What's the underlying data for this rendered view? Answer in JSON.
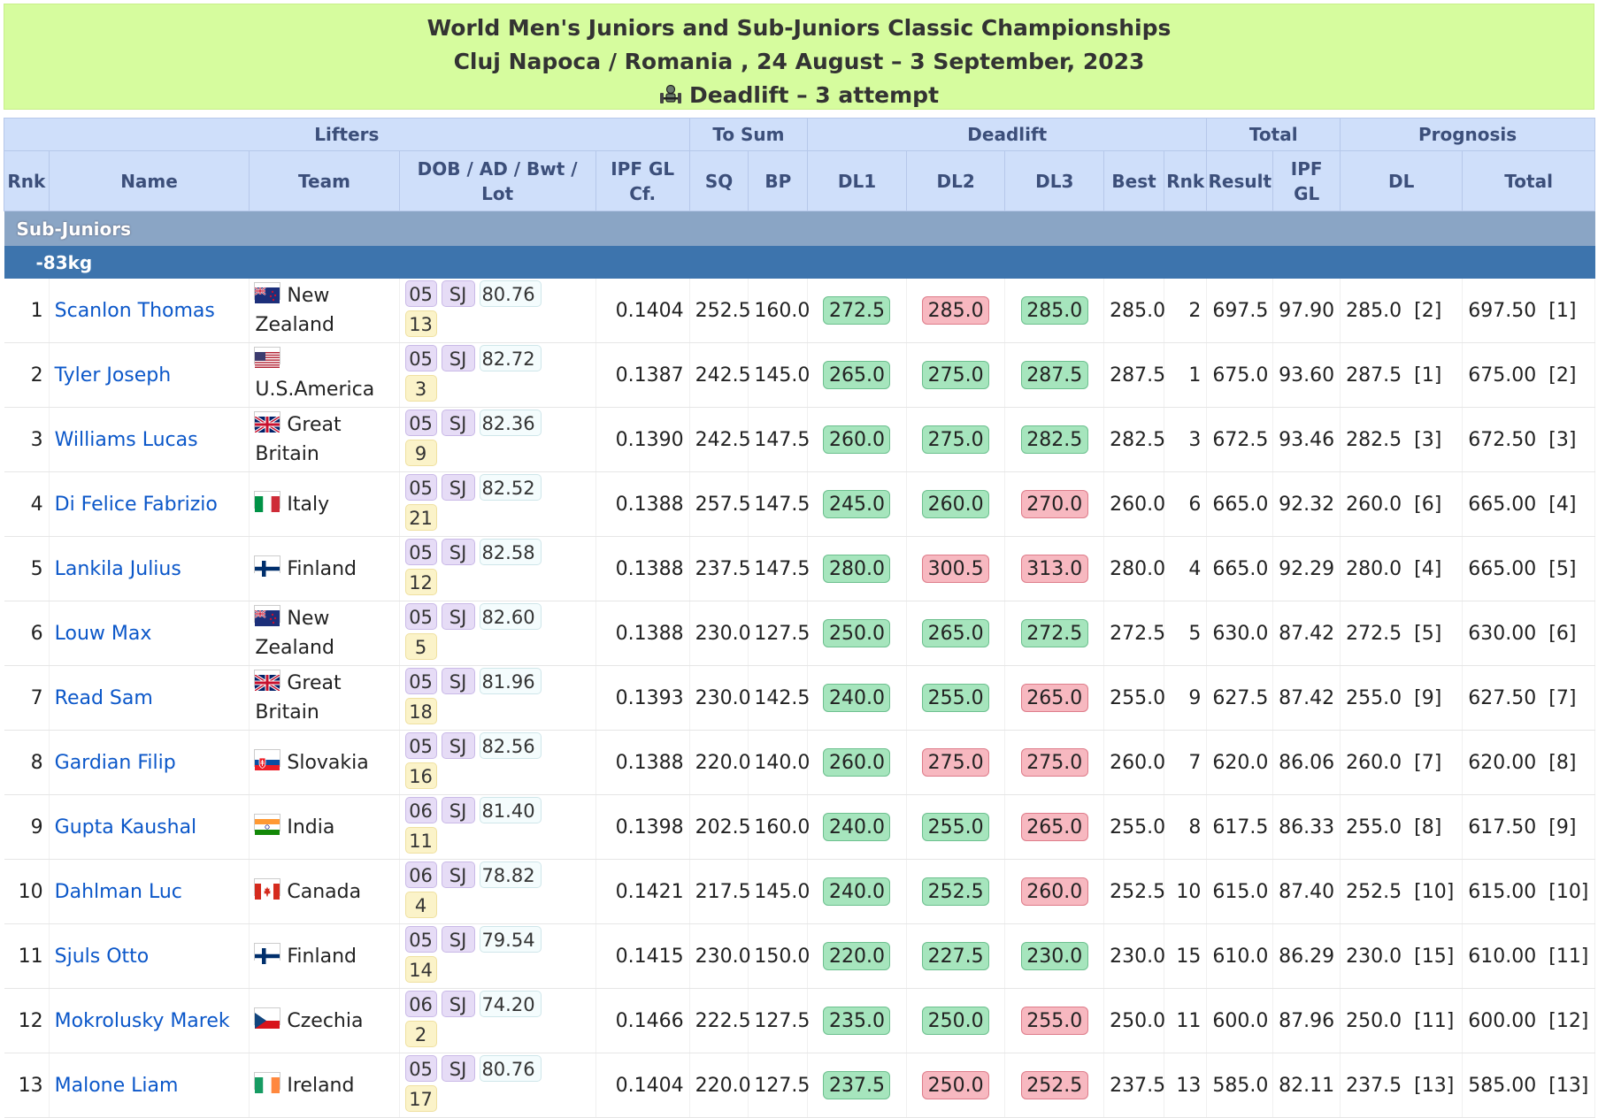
{
  "header": {
    "title": "World Men's Juniors and Sub-Juniors Classic Championships",
    "location": "Cluj Napoca / Romania , 24 August – 3 September, 2023",
    "event": "Deadlift – 3 attempt"
  },
  "columns": {
    "groups": {
      "lifters": "Lifters",
      "to_sum": "To Sum",
      "deadlift": "Deadlift",
      "total": "Total",
      "prognosis": "Prognosis"
    },
    "rnk": "Rnk",
    "name": "Name",
    "team": "Team",
    "dob_line1": "DOB / AD / Bwt /",
    "dob_line2": "Lot",
    "ipf_cf_line1": "IPF GL",
    "ipf_cf_line2": "Cf.",
    "sq": "SQ",
    "bp": "BP",
    "dl1": "DL1",
    "dl2": "DL2",
    "dl3": "DL3",
    "best": "Best",
    "dl_rnk": "Rnk",
    "result": "Result",
    "ipf_gl_line1": "IPF",
    "ipf_gl_line2": "GL",
    "prog_dl": "DL",
    "prog_total": "Total"
  },
  "category": "Sub-Juniors",
  "weight_class": "-83kg",
  "rows": [
    {
      "rnk": "1",
      "name": "Scanlon Thomas",
      "flag": "nz",
      "team": "New Zealand",
      "dob": "05",
      "ad": "SJ",
      "bwt": "80.76",
      "lot": "13",
      "cf": "0.1404",
      "sq": "252.5",
      "bp": "160.0",
      "dl1": "272.5",
      "dl1_ok": true,
      "dl2": "285.0",
      "dl2_ok": false,
      "dl3": "285.0",
      "dl3_ok": true,
      "best": "285.0",
      "dl_rnk": "2",
      "dl_rnk_red": true,
      "result": "697.5",
      "ipf_gl": "97.90",
      "prog_dl": "285.0",
      "prog_dl_rank": "[2]",
      "prog_total": "697.50",
      "prog_total_rank": "[1]"
    },
    {
      "rnk": "2",
      "name": "Tyler Joseph",
      "flag": "us",
      "team": "U.S.America",
      "dob": "05",
      "ad": "SJ",
      "bwt": "82.72",
      "lot": "3",
      "cf": "0.1387",
      "sq": "242.5",
      "bp": "145.0",
      "dl1": "265.0",
      "dl1_ok": true,
      "dl2": "275.0",
      "dl2_ok": true,
      "dl3": "287.5",
      "dl3_ok": true,
      "best": "287.5",
      "dl_rnk": "1",
      "dl_rnk_red": true,
      "result": "675.0",
      "ipf_gl": "93.60",
      "prog_dl": "287.5",
      "prog_dl_rank": "[1]",
      "prog_total": "675.00",
      "prog_total_rank": "[2]"
    },
    {
      "rnk": "3",
      "name": "Williams Lucas",
      "flag": "gb",
      "team": "Great Britain",
      "dob": "05",
      "ad": "SJ",
      "bwt": "82.36",
      "lot": "9",
      "cf": "0.1390",
      "sq": "242.5",
      "bp": "147.5",
      "dl1": "260.0",
      "dl1_ok": true,
      "dl2": "275.0",
      "dl2_ok": true,
      "dl3": "282.5",
      "dl3_ok": true,
      "best": "282.5",
      "dl_rnk": "3",
      "dl_rnk_red": true,
      "result": "672.5",
      "ipf_gl": "93.46",
      "prog_dl": "282.5",
      "prog_dl_rank": "[3]",
      "prog_total": "672.50",
      "prog_total_rank": "[3]"
    },
    {
      "rnk": "4",
      "name": "Di Felice Fabrizio",
      "flag": "it",
      "team": "Italy",
      "dob": "05",
      "ad": "SJ",
      "bwt": "82.52",
      "lot": "21",
      "cf": "0.1388",
      "sq": "257.5",
      "bp": "147.5",
      "dl1": "245.0",
      "dl1_ok": true,
      "dl2": "260.0",
      "dl2_ok": true,
      "dl3": "270.0",
      "dl3_ok": false,
      "best": "260.0",
      "dl_rnk": "6",
      "dl_rnk_red": false,
      "result": "665.0",
      "ipf_gl": "92.32",
      "prog_dl": "260.0",
      "prog_dl_rank": "[6]",
      "prog_total": "665.00",
      "prog_total_rank": "[4]"
    },
    {
      "rnk": "5",
      "name": "Lankila Julius",
      "flag": "fi",
      "team": "Finland",
      "dob": "05",
      "ad": "SJ",
      "bwt": "82.58",
      "lot": "12",
      "cf": "0.1388",
      "sq": "237.5",
      "bp": "147.5",
      "dl1": "280.0",
      "dl1_ok": true,
      "dl2": "300.5",
      "dl2_ok": false,
      "dl3": "313.0",
      "dl3_ok": false,
      "best": "280.0",
      "dl_rnk": "4",
      "dl_rnk_red": false,
      "result": "665.0",
      "ipf_gl": "92.29",
      "prog_dl": "280.0",
      "prog_dl_rank": "[4]",
      "prog_total": "665.00",
      "prog_total_rank": "[5]"
    },
    {
      "rnk": "6",
      "name": "Louw Max",
      "flag": "nz",
      "team": "New Zealand",
      "dob": "05",
      "ad": "SJ",
      "bwt": "82.60",
      "lot": "5",
      "cf": "0.1388",
      "sq": "230.0",
      "bp": "127.5",
      "dl1": "250.0",
      "dl1_ok": true,
      "dl2": "265.0",
      "dl2_ok": true,
      "dl3": "272.5",
      "dl3_ok": true,
      "best": "272.5",
      "dl_rnk": "5",
      "dl_rnk_red": false,
      "result": "630.0",
      "ipf_gl": "87.42",
      "prog_dl": "272.5",
      "prog_dl_rank": "[5]",
      "prog_total": "630.00",
      "prog_total_rank": "[6]"
    },
    {
      "rnk": "7",
      "name": "Read Sam",
      "flag": "gb",
      "team": "Great Britain",
      "dob": "05",
      "ad": "SJ",
      "bwt": "81.96",
      "lot": "18",
      "cf": "0.1393",
      "sq": "230.0",
      "bp": "142.5",
      "dl1": "240.0",
      "dl1_ok": true,
      "dl2": "255.0",
      "dl2_ok": true,
      "dl3": "265.0",
      "dl3_ok": false,
      "best": "255.0",
      "dl_rnk": "9",
      "dl_rnk_red": false,
      "result": "627.5",
      "ipf_gl": "87.42",
      "prog_dl": "255.0",
      "prog_dl_rank": "[9]",
      "prog_total": "627.50",
      "prog_total_rank": "[7]"
    },
    {
      "rnk": "8",
      "name": "Gardian Filip",
      "flag": "sk",
      "team": "Slovakia",
      "dob": "05",
      "ad": "SJ",
      "bwt": "82.56",
      "lot": "16",
      "cf": "0.1388",
      "sq": "220.0",
      "bp": "140.0",
      "dl1": "260.0",
      "dl1_ok": true,
      "dl2": "275.0",
      "dl2_ok": false,
      "dl3": "275.0",
      "dl3_ok": false,
      "best": "260.0",
      "dl_rnk": "7",
      "dl_rnk_red": false,
      "result": "620.0",
      "ipf_gl": "86.06",
      "prog_dl": "260.0",
      "prog_dl_rank": "[7]",
      "prog_total": "620.00",
      "prog_total_rank": "[8]"
    },
    {
      "rnk": "9",
      "name": "Gupta Kaushal",
      "flag": "in",
      "team": "India",
      "dob": "06",
      "ad": "SJ",
      "bwt": "81.40",
      "lot": "11",
      "cf": "0.1398",
      "sq": "202.5",
      "bp": "160.0",
      "dl1": "240.0",
      "dl1_ok": true,
      "dl2": "255.0",
      "dl2_ok": true,
      "dl3": "265.0",
      "dl3_ok": false,
      "best": "255.0",
      "dl_rnk": "8",
      "dl_rnk_red": false,
      "result": "617.5",
      "ipf_gl": "86.33",
      "prog_dl": "255.0",
      "prog_dl_rank": "[8]",
      "prog_total": "617.50",
      "prog_total_rank": "[9]"
    },
    {
      "rnk": "10",
      "name": "Dahlman Luc",
      "flag": "ca",
      "team": "Canada",
      "dob": "06",
      "ad": "SJ",
      "bwt": "78.82",
      "lot": "4",
      "cf": "0.1421",
      "sq": "217.5",
      "bp": "145.0",
      "dl1": "240.0",
      "dl1_ok": true,
      "dl2": "252.5",
      "dl2_ok": true,
      "dl3": "260.0",
      "dl3_ok": false,
      "best": "252.5",
      "dl_rnk": "10",
      "dl_rnk_red": false,
      "result": "615.0",
      "ipf_gl": "87.40",
      "prog_dl": "252.5",
      "prog_dl_rank": "[10]",
      "prog_total": "615.00",
      "prog_total_rank": "[10]"
    },
    {
      "rnk": "11",
      "name": "Sjuls Otto",
      "flag": "fi",
      "team": "Finland",
      "dob": "05",
      "ad": "SJ",
      "bwt": "79.54",
      "lot": "14",
      "cf": "0.1415",
      "sq": "230.0",
      "bp": "150.0",
      "dl1": "220.0",
      "dl1_ok": true,
      "dl2": "227.5",
      "dl2_ok": true,
      "dl3": "230.0",
      "dl3_ok": true,
      "best": "230.0",
      "dl_rnk": "15",
      "dl_rnk_red": false,
      "result": "610.0",
      "ipf_gl": "86.29",
      "prog_dl": "230.0",
      "prog_dl_rank": "[15]",
      "prog_total": "610.00",
      "prog_total_rank": "[11]"
    },
    {
      "rnk": "12",
      "name": "Mokrolusky Marek",
      "flag": "cz",
      "team": "Czechia",
      "dob": "06",
      "ad": "SJ",
      "bwt": "74.20",
      "lot": "2",
      "cf": "0.1466",
      "sq": "222.5",
      "bp": "127.5",
      "dl1": "235.0",
      "dl1_ok": true,
      "dl2": "250.0",
      "dl2_ok": true,
      "dl3": "255.0",
      "dl3_ok": false,
      "best": "250.0",
      "dl_rnk": "11",
      "dl_rnk_red": false,
      "result": "600.0",
      "ipf_gl": "87.96",
      "prog_dl": "250.0",
      "prog_dl_rank": "[11]",
      "prog_total": "600.00",
      "prog_total_rank": "[12]"
    },
    {
      "rnk": "13",
      "name": "Malone Liam",
      "flag": "ie",
      "team": "Ireland",
      "dob": "05",
      "ad": "SJ",
      "bwt": "80.76",
      "lot": "17",
      "cf": "0.1404",
      "sq": "220.0",
      "bp": "127.5",
      "dl1": "237.5",
      "dl1_ok": true,
      "dl2": "250.0",
      "dl2_ok": false,
      "dl3": "252.5",
      "dl3_ok": false,
      "best": "237.5",
      "dl_rnk": "13",
      "dl_rnk_red": false,
      "result": "585.0",
      "ipf_gl": "82.11",
      "prog_dl": "237.5",
      "prog_dl_rank": "[13]",
      "prog_total": "585.00",
      "prog_total_rank": "[13]"
    }
  ]
}
